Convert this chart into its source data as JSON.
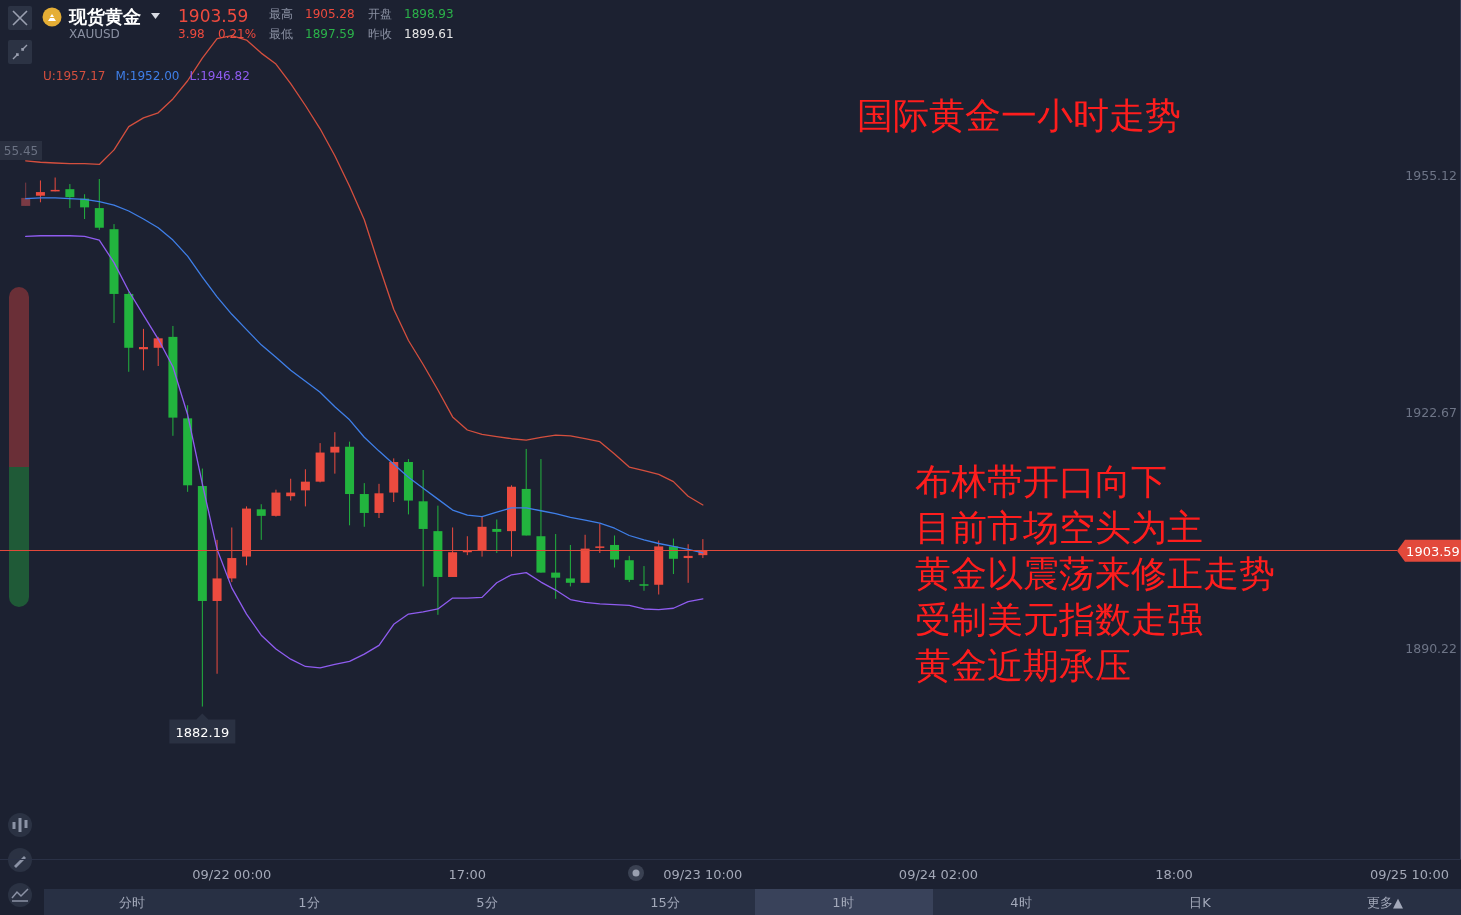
{
  "chart_data": {
    "type": "candlestick",
    "title": "国际黄金一小时走势",
    "categories": [
      null,
      null,
      null,
      null,
      null,
      null,
      null,
      null,
      null,
      null,
      null,
      null,
      null,
      null,
      "09/22 00:00",
      null,
      null,
      null,
      null,
      null,
      null,
      null,
      null,
      null,
      null,
      null,
      null,
      null,
      null,
      null,
      "17:00",
      null,
      null,
      null,
      null,
      null,
      null,
      null,
      null,
      null,
      null,
      null,
      null,
      null,
      null,
      null,
      "09/23 10:00",
      null,
      null,
      null,
      null,
      null,
      null,
      null,
      null,
      null,
      null,
      null,
      null,
      null,
      null,
      null,
      "09/24 02:00",
      null,
      null,
      null,
      null,
      null,
      null,
      null,
      null,
      null,
      null,
      null,
      null,
      null,
      null,
      null,
      "18:00",
      null,
      null,
      null,
      null,
      null,
      null,
      null,
      null,
      null,
      null,
      null,
      null,
      null,
      null,
      null,
      "09/25 10:00",
      null,
      null,
      null
    ],
    "ohlc": [
      [
        1951.0,
        1954.2,
        1951.0,
        1952.1
      ],
      [
        1952.4,
        1954.5,
        1951.5,
        1952.9
      ],
      [
        1953.0,
        1954.9,
        1953.0,
        1953.2
      ],
      [
        1953.3,
        1954.0,
        1950.7,
        1952.2
      ],
      [
        1952.0,
        1952.6,
        1949.2,
        1950.8
      ],
      [
        1950.7,
        1954.7,
        1947.7,
        1948.0
      ],
      [
        1947.8,
        1948.5,
        1934.9,
        1938.9
      ],
      [
        1938.9,
        1939.2,
        1928.2,
        1931.5
      ],
      [
        1931.3,
        1934.1,
        1928.4,
        1931.6
      ],
      [
        1931.5,
        1933.0,
        1929.0,
        1932.8
      ],
      [
        1933.0,
        1934.5,
        1919.4,
        1921.9
      ],
      [
        1921.8,
        1923.6,
        1911.7,
        1912.6
      ],
      [
        1912.5,
        1914.9,
        1882.19,
        1896.7
      ],
      [
        1896.7,
        1905.1,
        1886.7,
        1899.8
      ],
      [
        1899.8,
        1906.8,
        1899.3,
        1902.6
      ],
      [
        1902.8,
        1909.7,
        1901.6,
        1909.4
      ],
      [
        1909.3,
        1910.0,
        1905.1,
        1908.4
      ],
      [
        1908.4,
        1912.0,
        1908.3,
        1911.6
      ],
      [
        1911.1,
        1913.5,
        1910.5,
        1911.6
      ],
      [
        1911.9,
        1914.8,
        1909.7,
        1913.1
      ],
      [
        1913.1,
        1918.4,
        1913.0,
        1917.1
      ],
      [
        1917.1,
        1919.9,
        1914.2,
        1917.9
      ],
      [
        1917.9,
        1918.6,
        1907.1,
        1911.4
      ],
      [
        1911.4,
        1912.9,
        1906.9,
        1908.8
      ],
      [
        1908.8,
        1912.8,
        1908.1,
        1911.5
      ],
      [
        1911.6,
        1916.3,
        1910.3,
        1915.8
      ],
      [
        1915.8,
        1916.2,
        1908.6,
        1910.5
      ],
      [
        1910.4,
        1914.7,
        1898.7,
        1906.6
      ],
      [
        1906.3,
        1909.8,
        1894.8,
        1900.0
      ],
      [
        1900.0,
        1906.8,
        1900.0,
        1903.4
      ],
      [
        1903.4,
        1905.6,
        1903.0,
        1903.7
      ],
      [
        1903.7,
        1908.3,
        1902.8,
        1906.9
      ],
      [
        1906.6,
        1907.9,
        1903.3,
        1906.2
      ],
      [
        1906.3,
        1912.6,
        1902.8,
        1912.4
      ],
      [
        1912.1,
        1917.6,
        1905.7,
        1905.7
      ],
      [
        1905.6,
        1916.2,
        1900.6,
        1900.6
      ],
      [
        1900.6,
        1905.9,
        1897.0,
        1899.9
      ],
      [
        1899.8,
        1904.4,
        1898.7,
        1899.2
      ],
      [
        1899.2,
        1905.8,
        1899.2,
        1903.9
      ],
      [
        1904.0,
        1907.3,
        1903.3,
        1904.2
      ],
      [
        1904.4,
        1905.7,
        1901.3,
        1902.4
      ],
      [
        1902.3,
        1902.9,
        1899.3,
        1899.6
      ],
      [
        1899.0,
        1901.5,
        1898.1,
        1898.8
      ],
      [
        1898.93,
        1905.0,
        1897.59,
        1904.2
      ],
      [
        1904.2,
        1905.28,
        1900.4,
        1902.5
      ],
      [
        1902.6,
        1904.5,
        1899.2,
        1902.9
      ],
      [
        1903.0,
        1905.2,
        1902.6,
        1903.59
      ],
      null,
      null,
      null,
      null,
      null,
      null,
      null,
      null,
      null,
      null,
      null,
      null,
      null,
      null,
      null,
      null,
      null,
      null,
      null,
      null,
      null,
      null,
      null,
      null,
      null,
      null,
      null,
      null,
      null,
      null,
      null,
      null,
      null,
      null,
      null,
      null,
      null,
      null,
      null,
      null,
      null,
      null,
      null,
      null,
      null,
      null,
      null,
      null,
      null,
      null,
      null
    ],
    "colors": [
      "#7a3a44",
      "#ec4b3f",
      "#ec4b3f",
      "#22b43e",
      "#22b43e",
      "#22b43e",
      "#22b43e",
      "#22b43e",
      "#ec4b3f",
      "#ec4b3f",
      "#22b43e",
      "#22b43e",
      "#22b43e",
      "#ec4b3f",
      "#ec4b3f",
      "#ec4b3f",
      "#22b43e",
      "#ec4b3f",
      "#ec4b3f",
      "#ec4b3f",
      "#ec4b3f",
      "#ec4b3f",
      "#22b43e",
      "#22b43e",
      "#ec4b3f",
      "#ec4b3f",
      "#22b43e",
      "#22b43e",
      "#22b43e",
      "#ec4b3f",
      "#ec4b3f",
      "#ec4b3f",
      "#22b43e",
      "#ec4b3f",
      "#22b43e",
      "#22b43e",
      "#22b43e",
      "#22b43e",
      "#ec4b3f",
      "#ec4b3f",
      "#22b43e",
      "#22b43e",
      "#22b43e",
      "#ec4b3f",
      "#22b43e",
      "#ec4b3f",
      "#ec4b3f",
      null,
      null,
      null,
      null,
      null,
      null,
      null,
      null,
      null,
      null,
      null,
      null,
      null,
      null,
      null,
      null,
      null,
      null,
      null,
      null,
      null,
      null,
      null,
      null,
      null,
      null,
      null,
      null,
      null,
      null,
      null,
      null,
      null,
      null,
      null,
      null,
      null,
      null,
      null,
      null,
      null,
      null,
      null,
      null,
      null,
      null,
      null,
      null,
      null,
      null,
      null
    ],
    "series": [
      {
        "name": "U:1957.17",
        "type": "line",
        "color": "#d44f3e",
        "values": [
          1957.2,
          1957.0,
          1956.9,
          1956.8,
          1956.8,
          1956.7,
          1958.7,
          1961.9,
          1963.1,
          1963.8,
          1965.7,
          1968.2,
          1971.3,
          1974.0,
          1974.4,
          1973.8,
          1972.0,
          1970.5,
          1967.8,
          1964.8,
          1961.6,
          1957.9,
          1953.7,
          1949.1,
          1942.8,
          1936.8,
          1932.5,
          1929.2,
          1925.7,
          1922.0,
          1920.2,
          1919.6,
          1919.3,
          1919.0,
          1918.8,
          1919.2,
          1919.5,
          1919.4,
          1919.0,
          1918.6,
          1916.9,
          1915.1,
          1914.6,
          1914.1,
          1913.1,
          1911.1,
          1909.9,
          null,
          null,
          null,
          null,
          null,
          null,
          null,
          null,
          null,
          null,
          null,
          null,
          null,
          null,
          null,
          null,
          null,
          null,
          null,
          null,
          null,
          null,
          null,
          null,
          null,
          null,
          null,
          null,
          null,
          null,
          null,
          null,
          null,
          null,
          null,
          null,
          null,
          null,
          null,
          null,
          null,
          null,
          null,
          null,
          null,
          null,
          null,
          null,
          null,
          null,
          null
        ]
      },
      {
        "name": "M:1952.00",
        "type": "line",
        "color": "#3f7fe8",
        "values": [
          1952.0,
          1952.1,
          1952.1,
          1952.0,
          1951.9,
          1951.6,
          1951.1,
          1950.3,
          1949.2,
          1948.0,
          1946.3,
          1944.1,
          1941.2,
          1938.5,
          1936.1,
          1934.0,
          1931.9,
          1930.2,
          1928.4,
          1926.9,
          1925.4,
          1923.4,
          1921.6,
          1919.2,
          1917.3,
          1915.5,
          1913.7,
          1912.2,
          1910.7,
          1909.2,
          1908.5,
          1908.3,
          1908.9,
          1909.5,
          1909.5,
          1909.1,
          1908.7,
          1908.2,
          1907.8,
          1907.4,
          1906.7,
          1905.7,
          1905.1,
          1904.6,
          1904.2,
          1903.8,
          1903.3,
          null,
          null,
          null,
          null,
          null,
          null,
          null,
          null,
          null,
          null,
          null,
          null,
          null,
          null,
          null,
          null,
          null,
          null,
          null,
          null,
          null,
          null,
          null,
          null,
          null,
          null,
          null,
          null,
          null,
          null,
          null,
          null,
          null,
          null,
          null,
          null,
          null,
          null,
          null,
          null,
          null,
          null,
          null,
          null,
          null,
          null,
          null,
          null,
          null,
          null,
          null
        ]
      },
      {
        "name": "L:1946.82",
        "type": "line",
        "color": "#8f5cf0",
        "values": [
          1946.8,
          1946.9,
          1946.9,
          1946.9,
          1946.8,
          1946.3,
          1943.2,
          1939.3,
          1936.0,
          1932.7,
          1928.9,
          1922.3,
          1912.8,
          1903.8,
          1898.5,
          1894.9,
          1892.0,
          1890.1,
          1888.7,
          1887.7,
          1887.5,
          1888.0,
          1888.4,
          1889.4,
          1890.6,
          1893.5,
          1894.9,
          1895.2,
          1895.6,
          1897.1,
          1897.1,
          1897.2,
          1899.2,
          1900.3,
          1900.6,
          1899.3,
          1898.2,
          1896.9,
          1896.5,
          1896.3,
          1896.2,
          1896.1,
          1895.6,
          1895.5,
          1895.7,
          1896.6,
          1897.0,
          null,
          null,
          null,
          null,
          null,
          null,
          null,
          null,
          null,
          null,
          null,
          null,
          null,
          null,
          null,
          null,
          null,
          null,
          null,
          null,
          null,
          null,
          null,
          null,
          null,
          null,
          null,
          null,
          null,
          null,
          null,
          null,
          null,
          null,
          null,
          null,
          null,
          null,
          null,
          null,
          null,
          null,
          null,
          null,
          null,
          null,
          null,
          null,
          null,
          null,
          null
        ]
      }
    ],
    "ylim": [
      1861.1,
      1979.3
    ],
    "yticks": [
      1955.12,
      1922.67,
      1890.22
    ],
    "ref_lines": [
      {
        "axis": "y",
        "value": 1903.59,
        "label": "1903.59",
        "color": "#e2493b"
      }
    ],
    "legend": "top left",
    "annotations": [
      "现货黄金",
      "XAUUSD",
      "1903.59",
      "3.98",
      "0.21%",
      "最高",
      "1905.28",
      "开盘",
      "1898.93",
      "最低",
      "1897.59",
      "昨收",
      "1899.61",
      "布林带开口向下",
      "目前市场空头为主",
      "黄金以震荡来修正走势",
      "受制美元指数走强",
      "黄金近期承压",
      "55.45",
      "分时",
      "1分",
      "5分",
      "15分",
      "1时",
      "4时",
      "日K",
      "更多▲",
      {
        "text": "1882.19",
        "y": 1882.19
      }
    ]
  }
}
